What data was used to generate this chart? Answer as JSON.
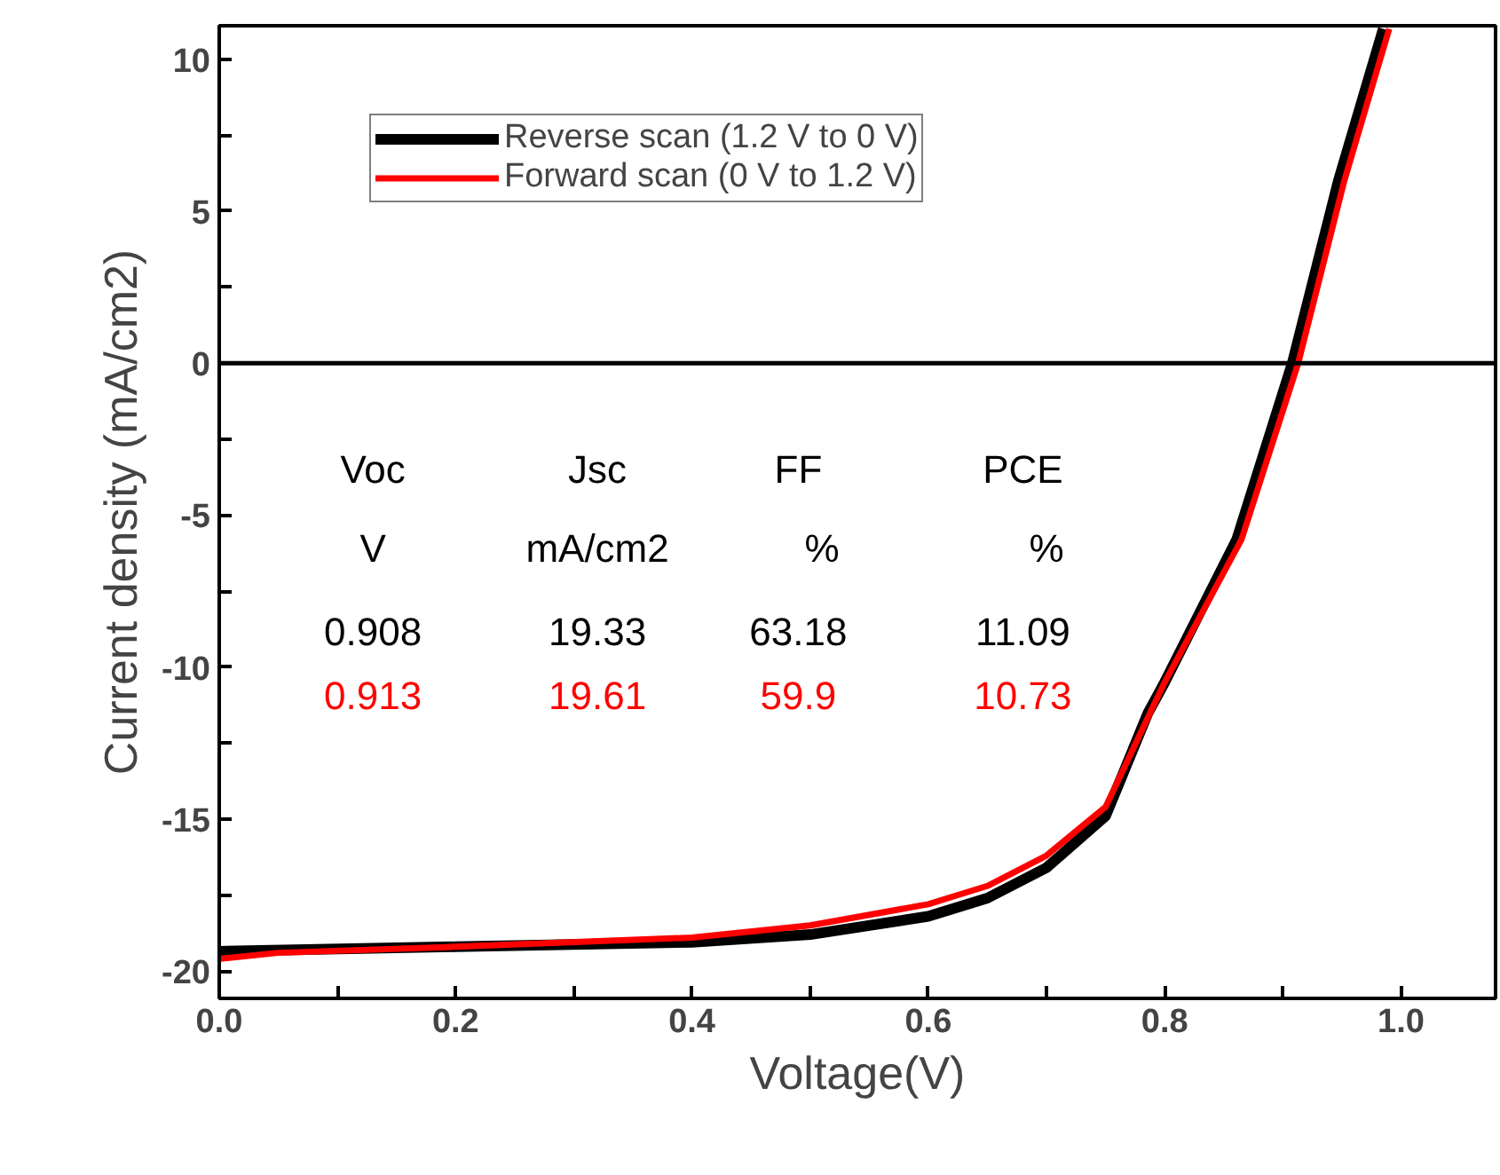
{
  "chart_data": {
    "type": "line",
    "xlabel": "Voltage(V)",
    "ylabel": "Current density (mA/cm2)",
    "xlim": [
      0,
      1.08
    ],
    "ylim": [
      -20.9,
      11.1
    ],
    "xticks": [
      {
        "value": 0,
        "label": "0.0"
      },
      {
        "value": 0.1,
        "label": null
      },
      {
        "value": 0.2,
        "label": "0.2"
      },
      {
        "value": 0.3,
        "label": null
      },
      {
        "value": 0.4,
        "label": "0.4"
      },
      {
        "value": 0.5,
        "label": null
      },
      {
        "value": 0.6,
        "label": "0.6"
      },
      {
        "value": 0.7,
        "label": null
      },
      {
        "value": 0.8,
        "label": "0.8"
      },
      {
        "value": 0.9,
        "label": null
      },
      {
        "value": 1,
        "label": "1.0"
      }
    ],
    "yticks": [
      -20,
      {
        "value": -17.5,
        "label": null
      },
      -15,
      {
        "value": -12.5,
        "label": null
      },
      -10,
      {
        "value": -7.5,
        "label": null
      },
      -5,
      {
        "value": -2.5,
        "label": null
      },
      0,
      {
        "value": 2.5,
        "label": null
      },
      5,
      {
        "value": 7.5,
        "label": null
      },
      10
    ],
    "series": [
      {
        "name": "Reverse scan (1.2 V to 0 V)",
        "color": "#000000",
        "x": [
          0,
          0.2,
          0.4,
          0.5,
          0.6,
          0.65,
          0.7,
          0.75,
          0.786,
          0.8,
          0.861,
          0.908,
          0.947,
          0.985
        ],
        "values": [
          -19.35,
          -19.2,
          -19.05,
          -18.8,
          -18.2,
          -17.6,
          -16.6,
          -14.9,
          -11.5,
          -10.5,
          -5.8,
          0,
          6,
          11
        ]
      },
      {
        "name": "Forward scan (0 V to 1.2 V)",
        "color": "#ff0000",
        "x": [
          0,
          0.05,
          0.2,
          0.4,
          0.5,
          0.6,
          0.65,
          0.7,
          0.75,
          0.8,
          0.865,
          0.913,
          0.952,
          0.99
        ],
        "values": [
          -19.6,
          -19.4,
          -19.2,
          -18.9,
          -18.5,
          -17.8,
          -17.2,
          -16.2,
          -14.6,
          -10.5,
          -5.8,
          0,
          6,
          11
        ]
      }
    ],
    "ref_lines": [
      {
        "axis": "y",
        "value": 0,
        "color": "#000000"
      }
    ],
    "annotations": [
      "Voc",
      "Jsc",
      "FF",
      "PCE",
      "V",
      "mA/cm2",
      "%",
      "%",
      "0.908",
      "19.33",
      "63.18",
      "11.09",
      "0.913",
      "19.61",
      "59.9",
      "10.73"
    ],
    "legend": "top left",
    "grid": false,
    "marker": "none",
    "line_style": "solid"
  }
}
